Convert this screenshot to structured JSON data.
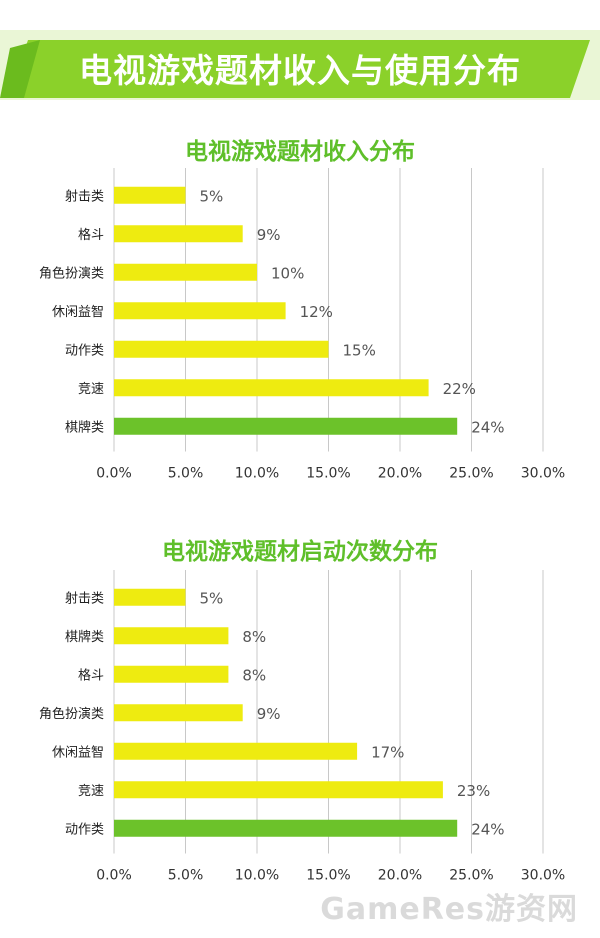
{
  "header": {
    "title": "电视游戏题材收入与使用分布"
  },
  "watermark": "GameRes游资网",
  "colors": {
    "banner": "#8bd12a",
    "banner_dark": "#6bbb1e",
    "bar_yellow": "#eeeb10",
    "bar_green": "#6cc22a",
    "title_green": "#5fbf2a",
    "grid": "#c8c8c8"
  },
  "chart_data": [
    {
      "type": "bar",
      "orientation": "horizontal",
      "title": "电视游戏题材收入分布",
      "categories": [
        "射击类",
        "格斗",
        "角色扮演类",
        "休闲益智",
        "动作类",
        "竞速",
        "棋牌类"
      ],
      "values": [
        5,
        9,
        10,
        12,
        15,
        22,
        24
      ],
      "value_labels": [
        "5%",
        "9%",
        "10%",
        "12%",
        "15%",
        "22%",
        "24%"
      ],
      "highlight": [
        false,
        false,
        false,
        false,
        false,
        false,
        true
      ],
      "xlim": [
        0,
        30
      ],
      "x_ticks": [
        "0.0%",
        "5.0%",
        "10.0%",
        "15.0%",
        "20.0%",
        "25.0%",
        "30.0%"
      ],
      "grid": true
    },
    {
      "type": "bar",
      "orientation": "horizontal",
      "title": "电视游戏题材启动次数分布",
      "categories": [
        "射击类",
        "棋牌类",
        "格斗",
        "角色扮演类",
        "休闲益智",
        "竞速",
        "动作类"
      ],
      "values": [
        5,
        8,
        8,
        9,
        17,
        23,
        24
      ],
      "value_labels": [
        "5%",
        "8%",
        "8%",
        "9%",
        "17%",
        "23%",
        "24%"
      ],
      "highlight": [
        false,
        false,
        false,
        false,
        false,
        false,
        true
      ],
      "xlim": [
        0,
        30
      ],
      "x_ticks": [
        "0.0%",
        "5.0%",
        "10.0%",
        "15.0%",
        "20.0%",
        "25.0%",
        "30.0%"
      ],
      "grid": true
    }
  ]
}
